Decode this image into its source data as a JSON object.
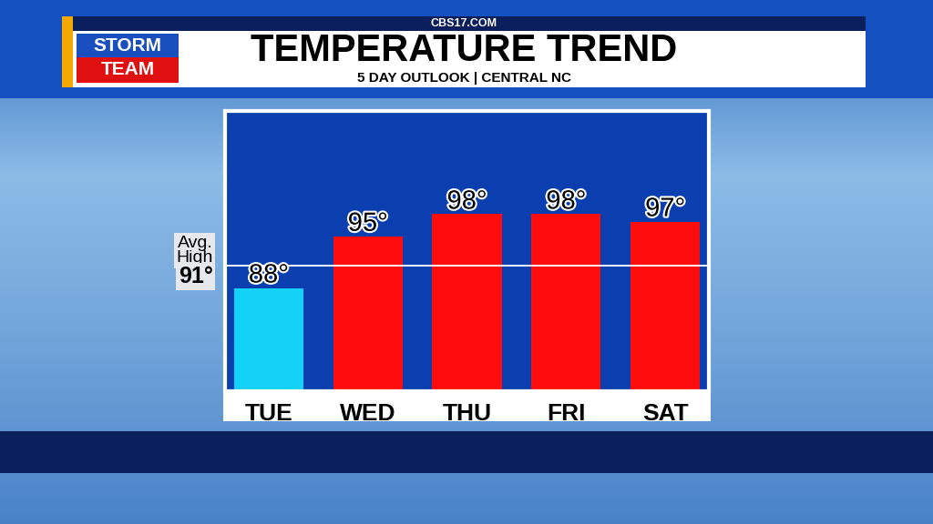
{
  "chart_data": {
    "type": "bar",
    "site": "CBS17.COM",
    "logo": [
      "STORM",
      "TEAM"
    ],
    "title": "TEMPERATURE TREND",
    "subtitle": "5 DAY OUTLOOK | CENTRAL NC",
    "categories": [
      "TUE",
      "WED",
      "THU",
      "FRI",
      "SAT"
    ],
    "values": [
      88,
      95,
      98,
      98,
      97
    ],
    "value_labels": [
      "88°",
      "95°",
      "98°",
      "98°",
      "97°"
    ],
    "colors": [
      "#14d2f7",
      "#ff0d0d",
      "#ff0d0d",
      "#ff0d0d",
      "#ff0d0d"
    ],
    "ylim": [
      74,
      112
    ],
    "tick_labels": "x",
    "data_labels": true,
    "reference_line": {
      "label": "Avg. High",
      "value": 91,
      "value_label": "91°"
    }
  }
}
